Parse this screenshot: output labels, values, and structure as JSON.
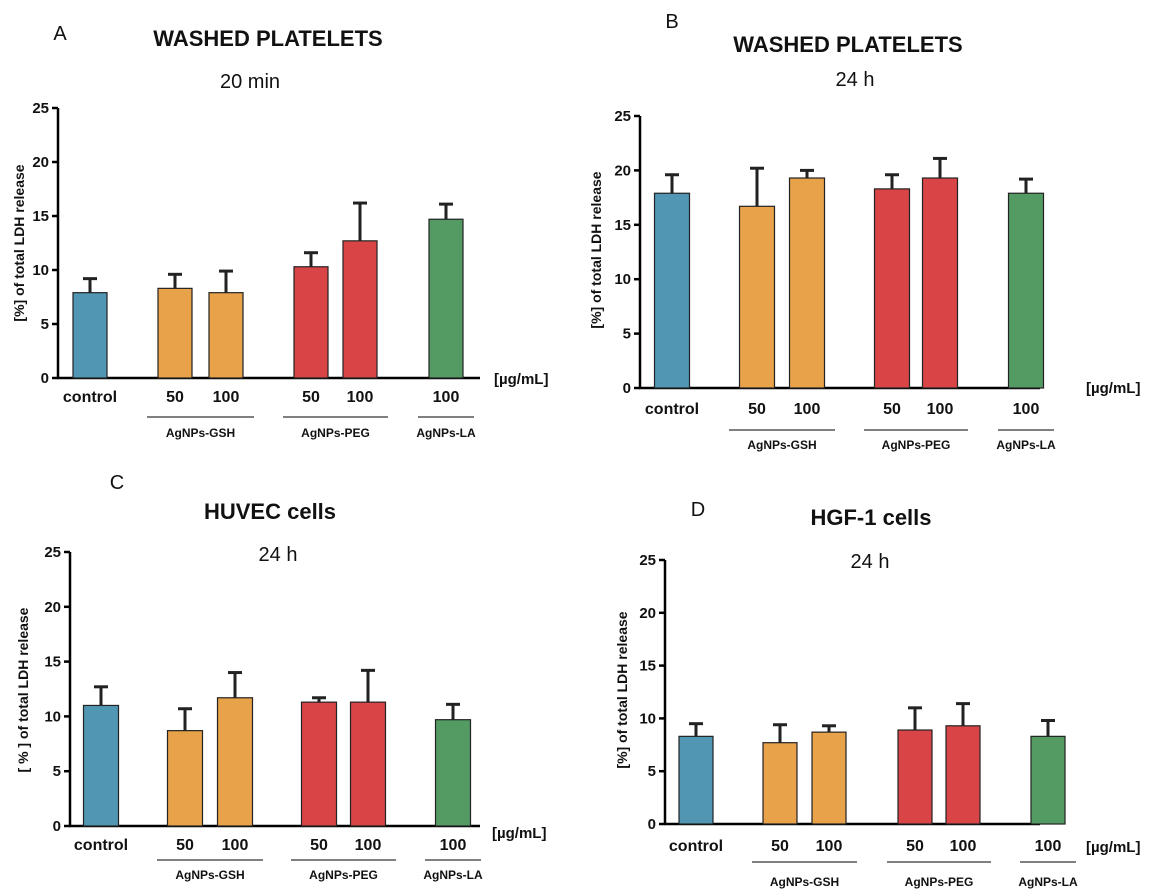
{
  "colors": {
    "control": "#5197b3",
    "gsh": "#e8a24a",
    "peg": "#d94446",
    "la": "#539a63"
  },
  "chart_data": [
    {
      "type": "bar",
      "letter": "A",
      "title": "WASHED PLATELETS",
      "subtitle": "20 min",
      "ylabel": "[%] of total LDH release",
      "unit": "[µg/mL]",
      "ylim": [
        0,
        25
      ],
      "yticks": [
        0,
        5,
        10,
        15,
        20,
        25
      ],
      "categories": [
        "control",
        "50",
        "100",
        "50",
        "100",
        "100"
      ],
      "series_keys": [
        "control",
        "gsh",
        "gsh",
        "peg",
        "peg",
        "la"
      ],
      "values": [
        7.9,
        8.3,
        7.9,
        10.3,
        12.7,
        14.7
      ],
      "errors": [
        1.3,
        1.3,
        2.0,
        1.3,
        3.5,
        1.4
      ],
      "groups": [
        {
          "label": "AgNPs-GSH",
          "from": 1,
          "to": 2
        },
        {
          "label": "AgNPs-PEG",
          "from": 3,
          "to": 4
        },
        {
          "label": "AgNPs-LA",
          "from": 5,
          "to": 5
        }
      ]
    },
    {
      "type": "bar",
      "letter": "B",
      "title": "WASHED PLATELETS",
      "subtitle": "24 h",
      "ylabel": "[%] of total LDH release",
      "unit": "[µg/mL]",
      "ylim": [
        0,
        25
      ],
      "yticks": [
        0,
        5,
        10,
        15,
        20,
        25
      ],
      "categories": [
        "control",
        "50",
        "100",
        "50",
        "100",
        "100"
      ],
      "series_keys": [
        "control",
        "gsh",
        "gsh",
        "peg",
        "peg",
        "la"
      ],
      "values": [
        17.9,
        16.7,
        19.3,
        18.3,
        19.3,
        17.9
      ],
      "errors": [
        1.7,
        3.5,
        0.7,
        1.3,
        1.8,
        1.3
      ],
      "groups": [
        {
          "label": "AgNPs-GSH",
          "from": 1,
          "to": 2
        },
        {
          "label": "AgNPs-PEG",
          "from": 3,
          "to": 4
        },
        {
          "label": "AgNPs-LA",
          "from": 5,
          "to": 5
        }
      ]
    },
    {
      "type": "bar",
      "letter": "C",
      "title": "HUVEC cells",
      "subtitle": "24 h",
      "ylabel": "[ % ] of total LDH release",
      "unit": "[µg/mL]",
      "ylim": [
        0,
        25
      ],
      "yticks": [
        0,
        5,
        10,
        15,
        20,
        25
      ],
      "categories": [
        "control",
        "50",
        "100",
        "50",
        "100",
        "100"
      ],
      "series_keys": [
        "control",
        "gsh",
        "gsh",
        "peg",
        "peg",
        "la"
      ],
      "values": [
        11.0,
        8.7,
        11.7,
        11.3,
        11.3,
        9.7
      ],
      "errors": [
        1.7,
        2.0,
        2.3,
        0.4,
        2.9,
        1.4
      ],
      "groups": [
        {
          "label": "AgNPs-GSH",
          "from": 1,
          "to": 2
        },
        {
          "label": "AgNPs-PEG",
          "from": 3,
          "to": 4
        },
        {
          "label": "AgNPs-LA",
          "from": 5,
          "to": 5
        }
      ]
    },
    {
      "type": "bar",
      "letter": "D",
      "title": "HGF-1 cells",
      "subtitle": "24 h",
      "ylabel": "[%] of total LDH release",
      "unit": "[µg/mL]",
      "ylim": [
        0,
        25
      ],
      "yticks": [
        0,
        5,
        10,
        15,
        20,
        25
      ],
      "categories": [
        "control",
        "50",
        "100",
        "50",
        "100",
        "100"
      ],
      "series_keys": [
        "control",
        "gsh",
        "gsh",
        "peg",
        "peg",
        "la"
      ],
      "values": [
        8.3,
        7.7,
        8.7,
        8.9,
        9.3,
        8.3
      ],
      "errors": [
        1.2,
        1.7,
        0.6,
        2.1,
        2.1,
        1.5
      ],
      "groups": [
        {
          "label": "AgNPs-GSH",
          "from": 1,
          "to": 2
        },
        {
          "label": "AgNPs-PEG",
          "from": 3,
          "to": 4
        },
        {
          "label": "AgNPs-LA",
          "from": 5,
          "to": 5
        }
      ]
    }
  ]
}
